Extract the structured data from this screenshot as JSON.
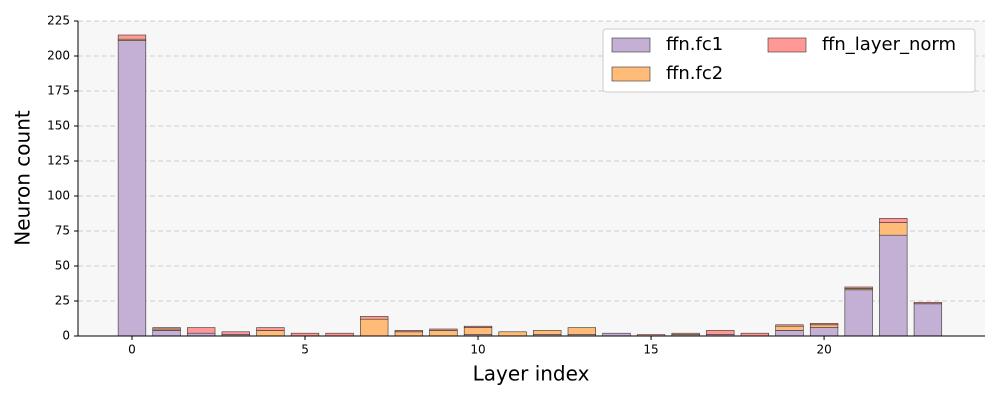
{
  "chart_data": {
    "type": "stacked_bar",
    "xlabel": "Layer index",
    "ylabel": "Neuron count",
    "x": [
      0,
      1,
      2,
      3,
      4,
      5,
      6,
      7,
      8,
      9,
      10,
      11,
      12,
      13,
      14,
      15,
      16,
      17,
      18,
      19,
      20,
      21,
      22,
      23
    ],
    "series": [
      {
        "name": "ffn.fc1",
        "color": "#c5b0d5",
        "values": [
          211,
          4,
          2,
          1,
          0,
          0,
          0,
          0,
          0,
          0,
          1,
          0,
          1,
          1,
          2,
          0,
          1,
          1,
          0,
          4,
          6,
          33,
          72,
          23
        ]
      },
      {
        "name": "ffn.fc2",
        "color": "#ffbb78",
        "values": [
          1,
          1,
          0,
          0,
          4,
          0,
          0,
          12,
          3,
          4,
          5,
          3,
          3,
          5,
          0,
          0,
          1,
          0,
          0,
          3,
          2,
          1,
          9,
          0
        ]
      },
      {
        "name": "ffn_layer_norm",
        "color": "#ff9896",
        "values": [
          3,
          1,
          4,
          2,
          2,
          2,
          2,
          2,
          1,
          1,
          1,
          0,
          0,
          0,
          0,
          1,
          0,
          3,
          2,
          1,
          1,
          1,
          3,
          1
        ]
      }
    ],
    "xlim": [
      -1.56,
      24.65
    ],
    "xticks": [
      0,
      5,
      10,
      15,
      20
    ],
    "ylim": [
      0,
      225
    ],
    "yticks": [
      0,
      25,
      50,
      75,
      100,
      125,
      150,
      175,
      200,
      225
    ],
    "grid": true,
    "legend": "upper right"
  }
}
